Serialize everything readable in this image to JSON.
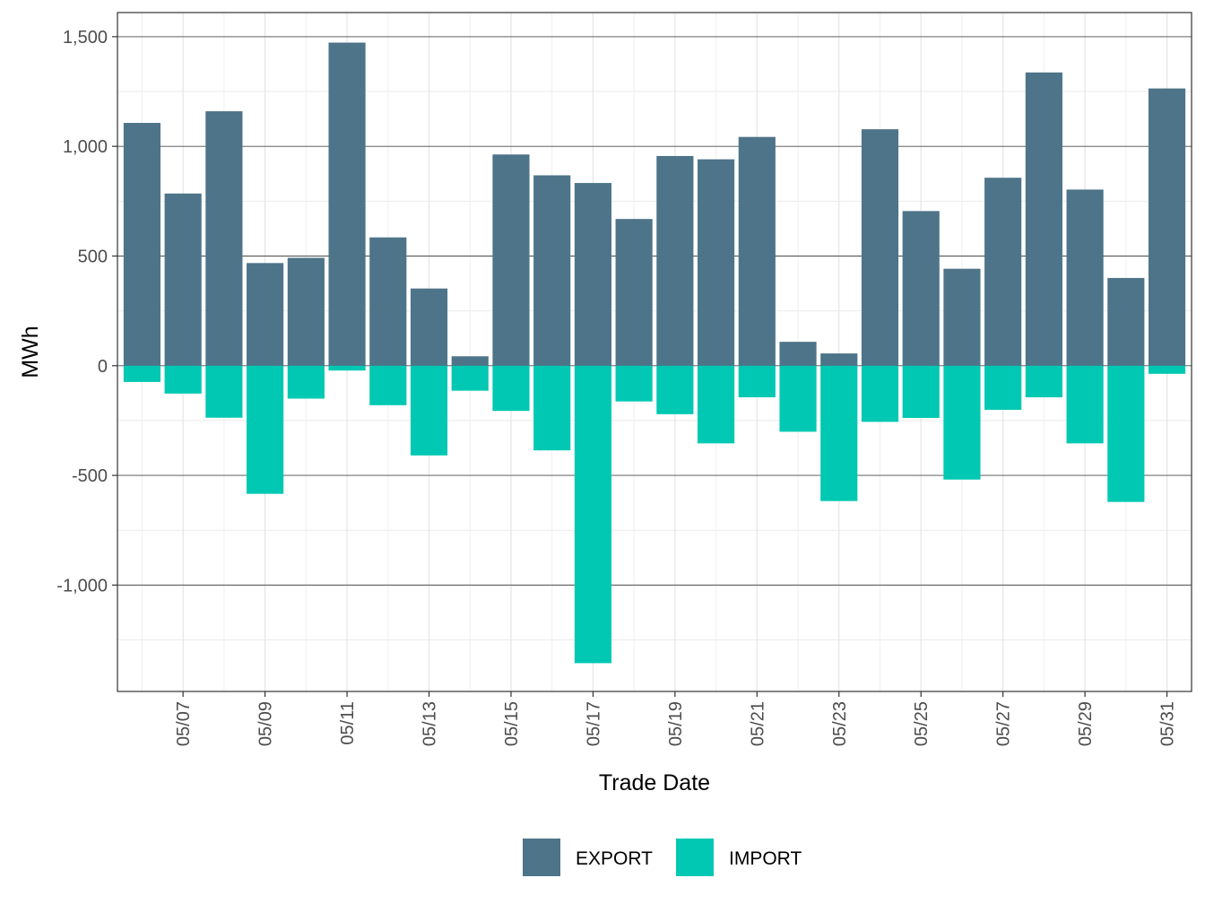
{
  "chart_data": {
    "type": "bar",
    "stacked": true,
    "xlabel": "Trade Date",
    "ylabel": "MWh",
    "x": [
      "05/06",
      "05/07",
      "05/08",
      "05/09",
      "05/10",
      "05/11",
      "05/12",
      "05/13",
      "05/14",
      "05/15",
      "05/16",
      "05/17",
      "05/18",
      "05/19",
      "05/20",
      "05/21",
      "05/22",
      "05/23",
      "05/24",
      "05/25",
      "05/26",
      "05/27",
      "05/28",
      "05/29",
      "05/30",
      "05/31"
    ],
    "x_tick_labels": [
      "05/07",
      "05/09",
      "05/11",
      "05/13",
      "05/15",
      "05/17",
      "05/19",
      "05/21",
      "05/23",
      "05/25",
      "05/27",
      "05/29",
      "05/31"
    ],
    "series": [
      {
        "name": "EXPORT",
        "color": "#4e7489",
        "values": [
          1107,
          785,
          1160,
          468,
          492,
          1473,
          585,
          352,
          43,
          963,
          868,
          833,
          669,
          956,
          941,
          1043,
          109,
          56,
          1078,
          705,
          442,
          857,
          1337,
          803,
          400,
          1264
        ]
      },
      {
        "name": "IMPORT",
        "color": "#00c8b3",
        "values": [
          -74,
          -127,
          -237,
          -584,
          -150,
          -22,
          -180,
          -409,
          -114,
          -206,
          -386,
          -1356,
          -163,
          -221,
          -354,
          -144,
          -301,
          -617,
          -256,
          -238,
          -519,
          -201,
          -144,
          -354,
          -621,
          -37
        ]
      }
    ],
    "y_ticks": [
      -1000,
      -500,
      0,
      500,
      1000,
      1500
    ],
    "y_tick_labels": [
      "-1,000",
      "-500",
      "0",
      "500",
      "1,000",
      "1,500"
    ],
    "ylim": [
      -1485,
      1610
    ],
    "grid": true,
    "legend": {
      "position": "bottom",
      "entries": [
        "EXPORT",
        "IMPORT"
      ]
    }
  }
}
